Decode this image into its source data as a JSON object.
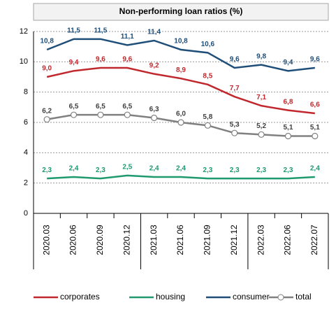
{
  "chart_data": {
    "type": "line",
    "title": "Non-performing loan ratios (%)",
    "categories": [
      "2020.03",
      "2020.06",
      "2020.09",
      "2020.12",
      "2021.03",
      "2021.06",
      "2021.09",
      "2021.12",
      "2022.03",
      "2022.06",
      "2022.07"
    ],
    "series": [
      {
        "name": "corporates",
        "color": "#c0282d",
        "values": [
          9.0,
          9.4,
          9.6,
          9.6,
          9.2,
          8.9,
          8.5,
          7.7,
          7.1,
          6.8,
          6.6
        ],
        "value_labels": [
          "9,0",
          "9,4",
          "9,6",
          "9,6",
          "9,2",
          "8,9",
          "8,5",
          "7,7",
          "7,1",
          "6,8",
          "6,6"
        ]
      },
      {
        "name": "housing",
        "color": "#1e9a6e",
        "values": [
          2.3,
          2.4,
          2.3,
          2.5,
          2.4,
          2.4,
          2.3,
          2.3,
          2.3,
          2.3,
          2.4
        ],
        "value_labels": [
          "2,3",
          "2,4",
          "2,3",
          "2,5",
          "2,4",
          "2,4",
          "2,3",
          "2,3",
          "2,3",
          "2,3",
          "2,4"
        ]
      },
      {
        "name": "consumer",
        "color": "#1f4e79",
        "values": [
          10.8,
          11.5,
          11.5,
          11.1,
          11.4,
          10.8,
          10.6,
          9.6,
          9.8,
          9.4,
          9.6
        ],
        "value_labels": [
          "10,8",
          "11,5",
          "11,5",
          "11,1",
          "11,4",
          "10,8",
          "10,6",
          "9,6",
          "9,8",
          "9,4",
          "9,6"
        ]
      },
      {
        "name": "total",
        "color": "#808080",
        "marker": "circle",
        "values": [
          6.2,
          6.5,
          6.5,
          6.5,
          6.3,
          6.0,
          5.8,
          5.3,
          5.2,
          5.1,
          5.1
        ],
        "value_labels": [
          "6,2",
          "6,5",
          "6,5",
          "6,5",
          "6,3",
          "6,0",
          "5,8",
          "5,3",
          "5,2",
          "5,1",
          "5,1"
        ]
      }
    ],
    "ylim": [
      0,
      12
    ],
    "yticks": [
      0,
      2,
      4,
      6,
      8,
      10,
      12
    ],
    "grid": true
  }
}
